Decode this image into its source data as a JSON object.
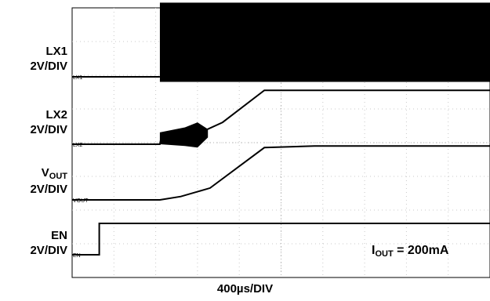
{
  "chart_data": {
    "type": "line",
    "title": "",
    "xlabel": "400µs/DIV",
    "grid": true,
    "annotation": {
      "prefix": "I",
      "sub": "OUT",
      "rest": " = 200mA"
    },
    "x_divisions": 10,
    "y_divisions": 8,
    "series": [
      {
        "name": "LX1",
        "scale": "2V/DIV",
        "ref_label": "LX1",
        "switching": [
          [
            2.1,
            10
          ]
        ],
        "points": [
          [
            0,
            0
          ],
          [
            2.1,
            0
          ],
          [
            2.1,
            2.0
          ],
          [
            10,
            2.0
          ]
        ],
        "band": [
          2.1,
          10,
          -0.15,
          2.2
        ]
      },
      {
        "name": "LX2",
        "scale": "2V/DIV",
        "ref_label": "LX2",
        "points": [
          [
            0,
            0
          ],
          [
            2.1,
            0
          ],
          [
            2.15,
            0.3
          ],
          [
            3.1,
            0.4
          ],
          [
            3.25,
            0.45
          ],
          [
            3.6,
            0.65
          ],
          [
            4.6,
            1.6
          ],
          [
            5.8,
            1.6
          ],
          [
            10,
            1.6
          ]
        ],
        "burst": [
          [
            2.1,
            0.0,
            0.35
          ],
          [
            2.7,
            -0.05,
            0.5
          ],
          [
            3.0,
            -0.1,
            0.65
          ],
          [
            3.25,
            0.2,
            0.45
          ]
        ]
      },
      {
        "name": "VOUT",
        "label_main": "V",
        "label_sub": "OUT",
        "scale": "2V/DIV",
        "ref_label": "VOUT",
        "points": [
          [
            0,
            0
          ],
          [
            2.1,
            0
          ],
          [
            2.6,
            0.1
          ],
          [
            3.3,
            0.35
          ],
          [
            4.6,
            1.55
          ],
          [
            5.8,
            1.6
          ],
          [
            10,
            1.6
          ]
        ]
      },
      {
        "name": "EN",
        "scale": "2V/DIV",
        "ref_label": "EN",
        "points": [
          [
            0,
            0
          ],
          [
            0.65,
            0
          ],
          [
            0.65,
            0.93
          ],
          [
            10,
            0.93
          ]
        ]
      }
    ]
  }
}
